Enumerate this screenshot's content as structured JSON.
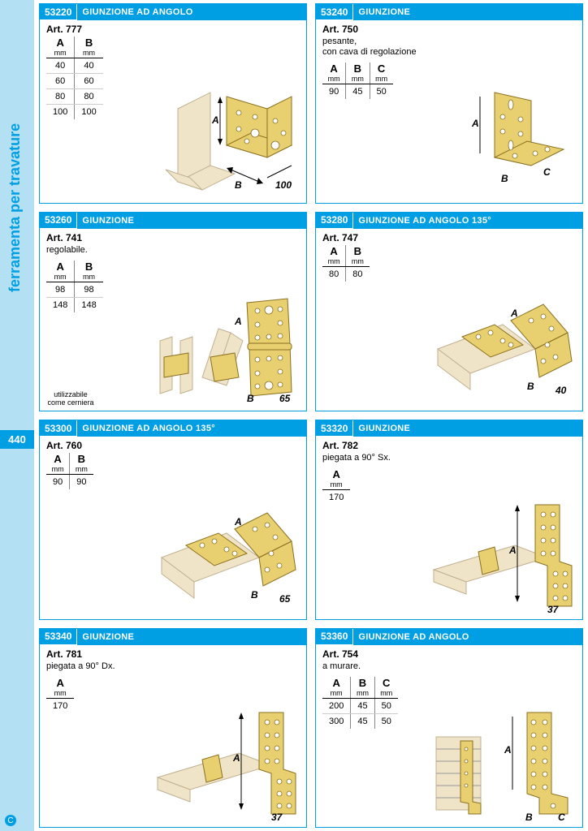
{
  "page": {
    "side_label": "ferramenta per travature",
    "page_number": "440",
    "accent_color": "#009fe3",
    "side_bg": "#b3e0f2"
  },
  "cards": [
    {
      "code": "53220",
      "title": "GIUNZIONE AD ANGOLO",
      "art": "Art. 777",
      "sub": "",
      "cols": [
        "A",
        "B"
      ],
      "rows": [
        [
          "40",
          "40"
        ],
        [
          "60",
          "60"
        ],
        [
          "80",
          "80"
        ],
        [
          "100",
          "100"
        ]
      ],
      "dim_extra": "100"
    },
    {
      "code": "53240",
      "title": "GIUNZIONE",
      "art": "Art. 750",
      "sub": "pesante,\ncon cava di regolazione",
      "cols": [
        "A",
        "B",
        "C"
      ],
      "rows": [
        [
          "90",
          "45",
          "50"
        ]
      ]
    },
    {
      "code": "53260",
      "title": "GIUNZIONE",
      "art": "Art. 741",
      "sub": "regolabile.",
      "cols": [
        "A",
        "B"
      ],
      "rows": [
        [
          "98",
          "98"
        ],
        [
          "148",
          "148"
        ]
      ],
      "note": "utilizzabile\ncome cerniera",
      "dim_extra": "65"
    },
    {
      "code": "53280",
      "title": "GIUNZIONE AD ANGOLO 135°",
      "art": "Art. 747",
      "sub": "",
      "cols": [
        "A",
        "B"
      ],
      "rows": [
        [
          "80",
          "80"
        ]
      ],
      "dim_extra": "40"
    },
    {
      "code": "53300",
      "title": "GIUNZIONE AD ANGOLO 135°",
      "art": "Art. 760",
      "sub": "",
      "cols": [
        "A",
        "B"
      ],
      "rows": [
        [
          "90",
          "90"
        ]
      ],
      "dim_extra": "65"
    },
    {
      "code": "53320",
      "title": "GIUNZIONE",
      "art": "Art. 782",
      "sub": "piegata a 90° Sx.",
      "cols": [
        "A"
      ],
      "rows": [
        [
          "170"
        ]
      ],
      "dim_extra": "37"
    },
    {
      "code": "53340",
      "title": "GIUNZIONE",
      "art": "Art. 781",
      "sub": "piegata a 90° Dx.",
      "cols": [
        "A"
      ],
      "rows": [
        [
          "170"
        ]
      ],
      "dim_extra": "37"
    },
    {
      "code": "53360",
      "title": "GIUNZIONE AD ANGOLO",
      "art": "Art. 754",
      "sub": "a murare.",
      "cols": [
        "A",
        "B",
        "C"
      ],
      "rows": [
        [
          "200",
          "45",
          "50"
        ],
        [
          "300",
          "45",
          "50"
        ]
      ]
    }
  ],
  "labels": {
    "unit": "mm"
  }
}
